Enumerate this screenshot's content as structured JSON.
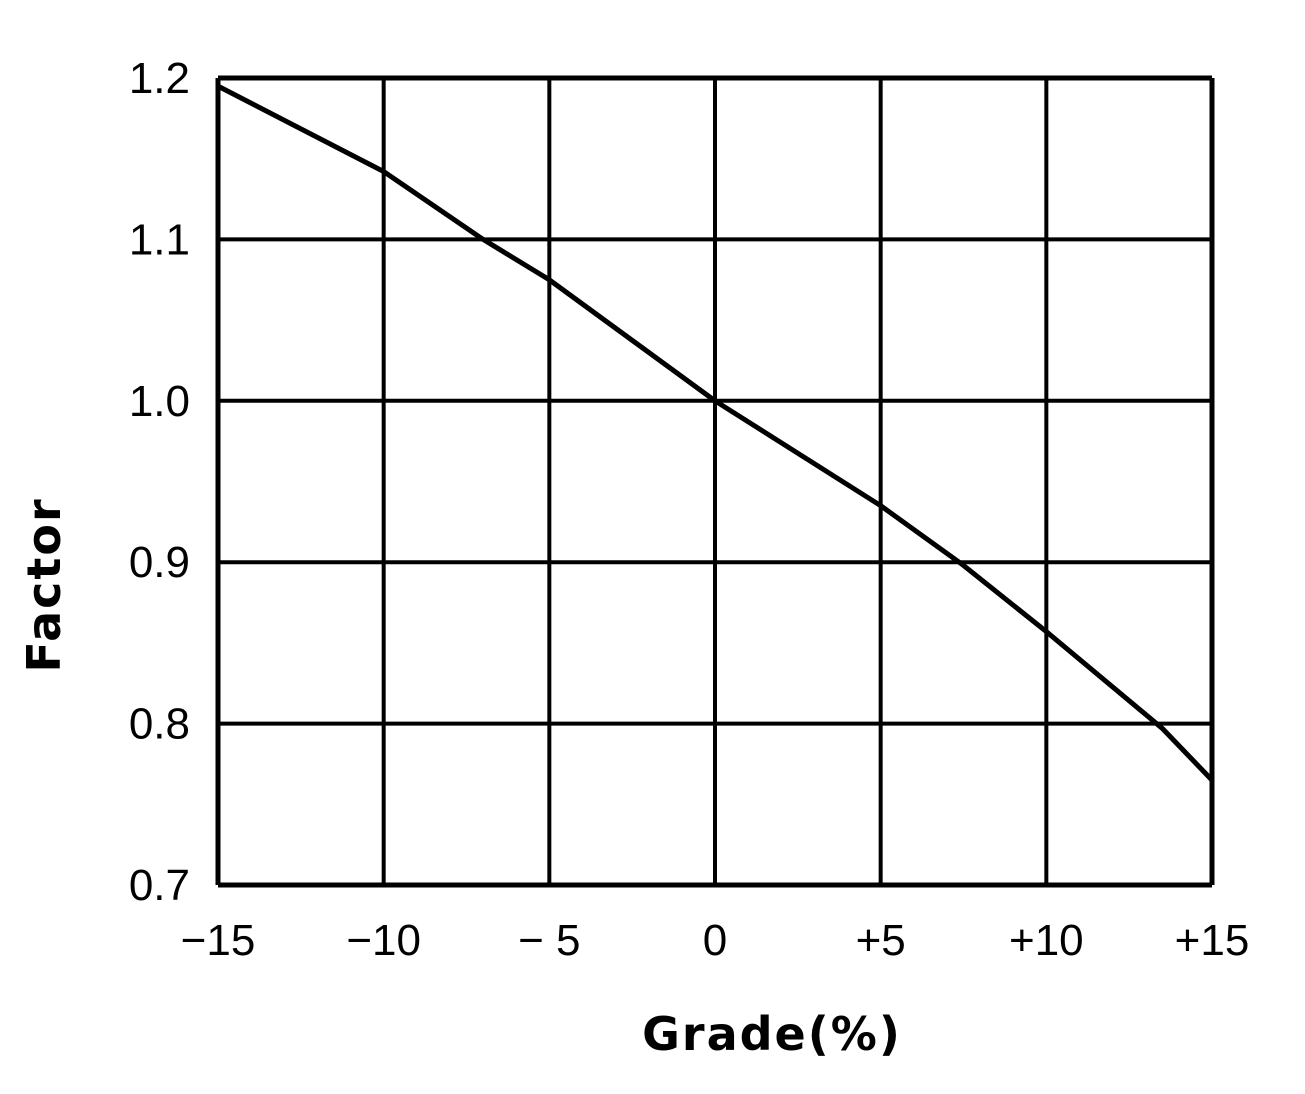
{
  "chart_data": {
    "type": "line",
    "title": "",
    "xlabel": "Grade(%)",
    "ylabel": "Factor",
    "xlim": [
      -15,
      15
    ],
    "ylim": [
      0.7,
      1.2
    ],
    "grid": true,
    "x_ticks": [
      -15,
      -10,
      -5,
      0,
      5,
      10,
      15
    ],
    "x_tick_labels": [
      "−15",
      "−10",
      "− 5",
      "0",
      "+5",
      "+10",
      "+15"
    ],
    "y_ticks": [
      0.7,
      0.8,
      0.9,
      1.0,
      1.1,
      1.2
    ],
    "y_tick_labels": [
      "0.7",
      "0.8",
      "0.9",
      "1.0",
      "1.1",
      "1.2"
    ],
    "series": [
      {
        "x": [
          -15,
          -10,
          -7,
          -5,
          0,
          5,
          7.5,
          10,
          13.5,
          15
        ],
        "y": [
          1.195,
          1.142,
          1.1,
          1.075,
          1.0,
          0.935,
          0.898,
          0.857,
          0.797,
          0.765
        ],
        "color": "#000000"
      }
    ]
  }
}
